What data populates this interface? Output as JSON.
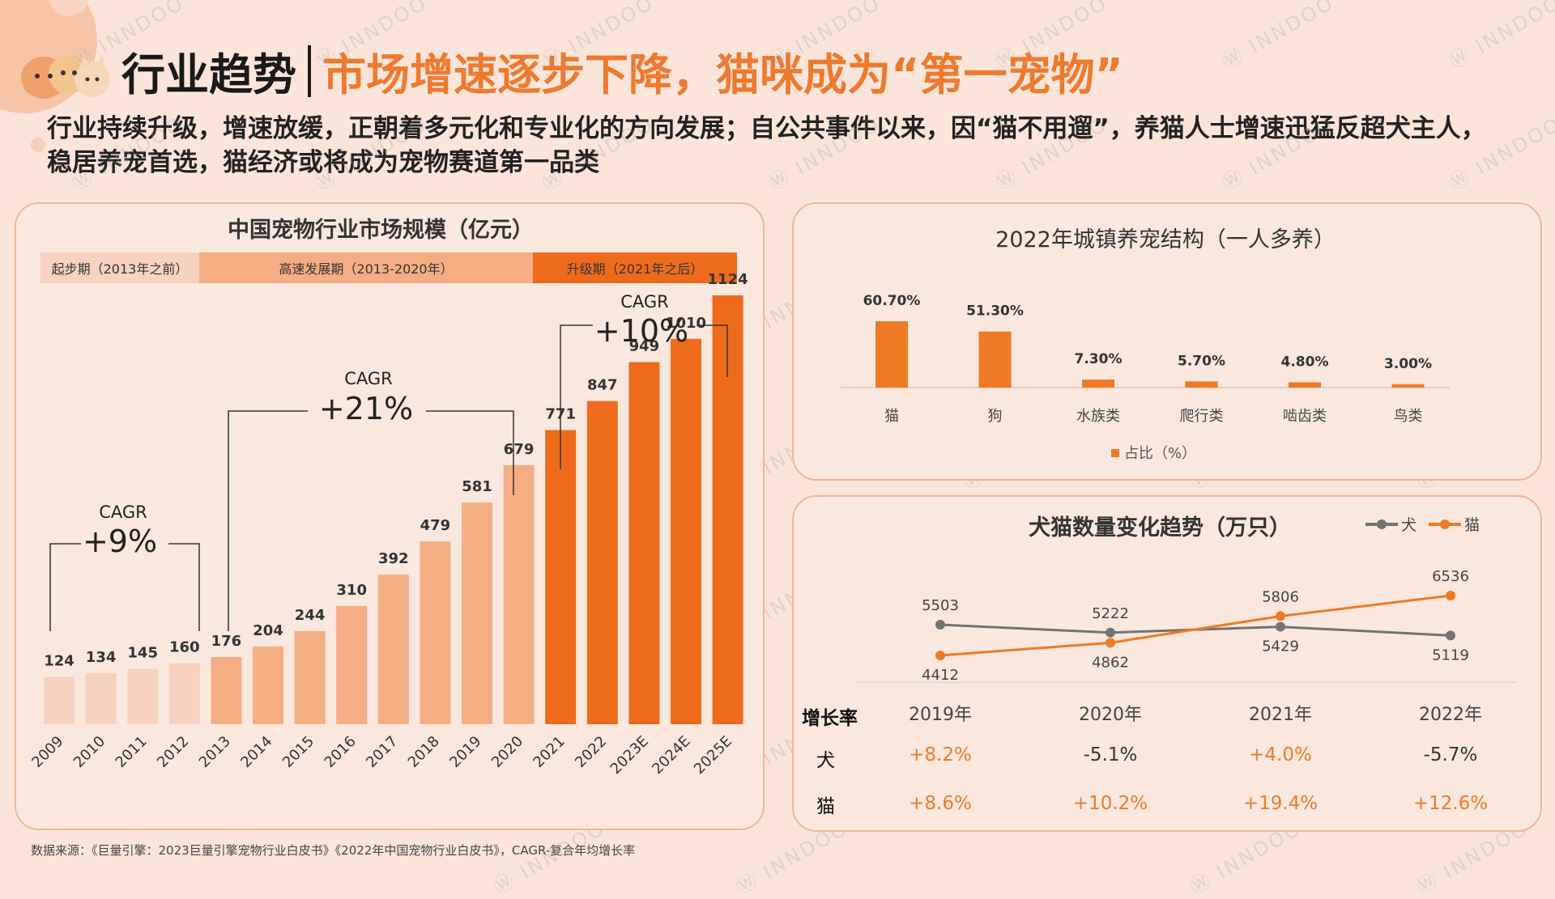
{
  "header": {
    "title": "行业趋势",
    "subtitle": "市场增速逐步下降，猫咪成为“第一宠物”",
    "description": "行业持续升级，增速放缓，正朝着多元化和专业化的方向发展；自公共事件以来，因“猫不用遛”，养猫人士增速迅猛反超犬主人，稳居养宠首选，猫经济或将成为宠物赛道第一品类"
  },
  "watermark": "INNDOO",
  "source": "数据来源：《巨量引擎：2023巨量引擎宠物行业白皮书》《2022年中国宠物行业白皮书》，CAGR-复合年均增长率",
  "phases": [
    {
      "label": "起步期（2013年之前）",
      "color": "#f6d2bf"
    },
    {
      "label": "高速发展期（2013-2020年）",
      "color": "#f5ae83"
    },
    {
      "label": "升级期（2021年之后）",
      "color": "#ef6b1c"
    }
  ],
  "cagr": [
    {
      "label": "CAGR",
      "value": "+9%"
    },
    {
      "label": "CAGR",
      "value": "+21%"
    },
    {
      "label": "CAGR",
      "value": "+10%"
    }
  ],
  "colors": {
    "accent": "#ee7a2f",
    "phase1": "#f6d2bf",
    "phase2": "#f5ae83",
    "phase3": "#ef6b1c",
    "dog": "#737373",
    "cat": "#ef7a24"
  },
  "chart_data": [
    {
      "type": "bar",
      "title": "中国宠物行业市场规模（亿元）",
      "categories": [
        "2009",
        "2010",
        "2011",
        "2012",
        "2013",
        "2014",
        "2015",
        "2016",
        "2017",
        "2018",
        "2019",
        "2020",
        "2021",
        "2022",
        "2023E",
        "2024E",
        "2025E"
      ],
      "values": [
        124,
        134,
        145,
        160,
        176,
        204,
        244,
        310,
        392,
        479,
        581,
        679,
        771,
        847,
        949,
        1010,
        1124
      ],
      "phase_index": [
        0,
        0,
        0,
        0,
        1,
        1,
        1,
        1,
        1,
        1,
        1,
        1,
        2,
        2,
        2,
        2,
        2
      ],
      "ylim": [
        0,
        1250
      ]
    },
    {
      "type": "bar",
      "title": "2022年城镇养宠结构（一人多养）",
      "categories": [
        "猫",
        "狗",
        "水族类",
        "爬行类",
        "啮齿类",
        "鸟类"
      ],
      "values": [
        60.7,
        51.3,
        7.3,
        5.7,
        4.8,
        3.0
      ],
      "value_labels": [
        "60.70%",
        "51.30%",
        "7.30%",
        "5.70%",
        "4.80%",
        "3.00%"
      ],
      "legend": "占比（%）",
      "ylim": [
        0,
        70
      ]
    },
    {
      "type": "line",
      "title": "犬猫数量变化趋势（万只）",
      "x": [
        "2019年",
        "2020年",
        "2021年",
        "2022年"
      ],
      "series": [
        {
          "name": "犬",
          "values": [
            5503,
            5222,
            5429,
            5119
          ]
        },
        {
          "name": "猫",
          "values": [
            4412,
            4862,
            5806,
            6536
          ]
        }
      ],
      "ylim": [
        3800,
        7200
      ]
    }
  ],
  "growth": {
    "header": "增长率",
    "rows": [
      {
        "label": "犬",
        "values": [
          "+8.2%",
          "-5.1%",
          "+4.0%",
          "-5.7%"
        ]
      },
      {
        "label": "猫",
        "values": [
          "+8.6%",
          "+10.2%",
          "+19.4%",
          "+12.6%"
        ]
      }
    ]
  }
}
